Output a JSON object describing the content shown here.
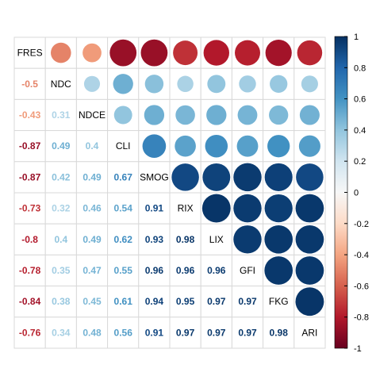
{
  "chart_data": {
    "type": "heatmap",
    "variables": [
      "FRES",
      "NDC",
      "NDCE",
      "CLI",
      "SMOG",
      "RIX",
      "LIX",
      "GFI",
      "FKG",
      "ARI"
    ],
    "matrix": [
      [
        1,
        -0.5,
        -0.43,
        -0.87,
        -0.87,
        -0.73,
        -0.8,
        -0.78,
        -0.84,
        -0.76
      ],
      [
        -0.5,
        1,
        0.31,
        0.49,
        0.42,
        0.32,
        0.4,
        0.35,
        0.38,
        0.34
      ],
      [
        -0.43,
        0.31,
        1,
        0.4,
        0.49,
        0.46,
        0.49,
        0.47,
        0.45,
        0.48
      ],
      [
        -0.87,
        0.49,
        0.4,
        1,
        0.67,
        0.54,
        0.62,
        0.55,
        0.61,
        0.56
      ],
      [
        -0.87,
        0.42,
        0.49,
        0.67,
        1,
        0.91,
        0.93,
        0.96,
        0.94,
        0.91
      ],
      [
        -0.73,
        0.32,
        0.46,
        0.54,
        0.91,
        1,
        0.98,
        0.96,
        0.95,
        0.97
      ],
      [
        -0.8,
        0.4,
        0.49,
        0.62,
        0.93,
        0.98,
        1,
        0.96,
        0.97,
        0.97
      ],
      [
        -0.78,
        0.35,
        0.47,
        0.55,
        0.96,
        0.96,
        0.96,
        1,
        0.97,
        0.97
      ],
      [
        -0.84,
        0.38,
        0.45,
        0.61,
        0.94,
        0.95,
        0.97,
        0.97,
        1,
        0.98
      ],
      [
        -0.76,
        0.34,
        0.48,
        0.56,
        0.91,
        0.97,
        0.97,
        0.97,
        0.98,
        1
      ]
    ],
    "lower_labels": [
      [],
      [
        "-0.5"
      ],
      [
        "-0.43",
        "0.31"
      ],
      [
        "-0.87",
        "0.49",
        "0.4"
      ],
      [
        "-0.87",
        "0.42",
        "0.49",
        "0.67"
      ],
      [
        "-0.73",
        "0.32",
        "0.46",
        "0.54",
        "0.91"
      ],
      [
        "-0.8",
        "0.4",
        "0.49",
        "0.62",
        "0.93",
        "0.98"
      ],
      [
        "-0.78",
        "0.35",
        "0.47",
        "0.55",
        "0.96",
        "0.96",
        "0.96"
      ],
      [
        "-0.84",
        "0.38",
        "0.45",
        "0.61",
        "0.94",
        "0.95",
        "0.97",
        "0.97"
      ],
      [
        "-0.76",
        "0.34",
        "0.48",
        "0.56",
        "0.91",
        "0.97",
        "0.97",
        "0.97",
        "0.98"
      ]
    ],
    "upper": "circles",
    "lower": "numbers",
    "diagonal": "variable names",
    "color_range": [
      -1,
      1
    ],
    "colorbar_ticks": [
      "1",
      "0.8",
      "0.6",
      "0.4",
      "0.2",
      "0",
      "-0.2",
      "-0.4",
      "-0.6",
      "-0.8",
      "-1"
    ],
    "colorbar_tick_values": [
      1,
      0.8,
      0.6,
      0.4,
      0.2,
      0,
      -0.2,
      -0.4,
      -0.6,
      -0.8,
      -1
    ],
    "legend_placement": "right",
    "colors": {
      "negative_end": "#67001f",
      "positive_end": "#053061",
      "midpoint": "#f7f7f7",
      "grid": "#d9d9d9"
    }
  }
}
